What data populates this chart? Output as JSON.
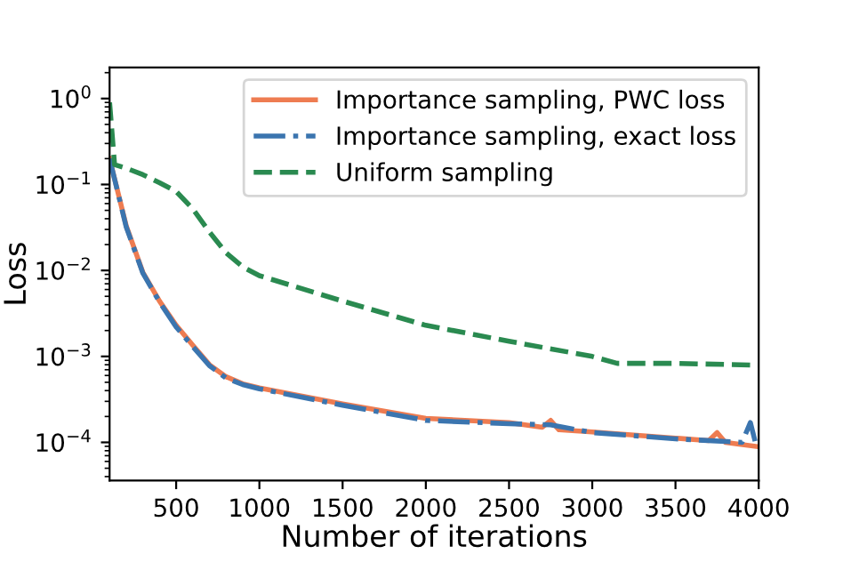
{
  "chart_data": {
    "type": "line",
    "xlabel": "Number of iterations",
    "ylabel": "Loss",
    "log": "y",
    "xlim": [
      100,
      4000
    ],
    "xticks": [
      500,
      1000,
      1500,
      2000,
      2500,
      3000,
      3500,
      4000
    ],
    "ylim": [
      3.6e-05,
      2.3
    ],
    "yticks": [
      {
        "value": 0.0001,
        "label": "10$^{−4}$"
      },
      {
        "value": 0.001,
        "label": "10$^{−3}$"
      },
      {
        "value": 0.01,
        "label": "10$^{−2}$"
      },
      {
        "value": 0.1,
        "label": "10$^{−1}$"
      },
      {
        "value": 1,
        "label": "10$^{0}$"
      }
    ],
    "grid": false,
    "legend": "top right",
    "series": [
      {
        "name": "Importance sampling, PWC loss",
        "color": "#ee7c51",
        "line_style": "solid",
        "x": [
          100,
          200,
          300,
          400,
          500,
          600,
          700,
          800,
          900,
          1000,
          1500,
          2000,
          2500,
          2700,
          2750,
          2800,
          3000,
          3500,
          3700,
          3750,
          3800,
          4000
        ],
        "values": [
          0.2,
          0.033,
          0.0095,
          0.0044,
          0.0023,
          0.00135,
          0.0008,
          0.00058,
          0.00048,
          0.00043,
          0.00028,
          0.00019,
          0.00017,
          0.00015,
          0.00018,
          0.00014,
          0.000132,
          0.000112,
          0.000105,
          0.00013,
          0.0001,
          8.9e-05
        ]
      },
      {
        "name": "Importance sampling, exact loss",
        "color": "#3b75af",
        "line_style": "dashdot",
        "x": [
          100,
          200,
          300,
          400,
          500,
          600,
          700,
          800,
          900,
          1000,
          1500,
          2000,
          2500,
          2750,
          3000,
          3500,
          3900,
          3950,
          3980,
          4000
        ],
        "values": [
          0.2,
          0.032,
          0.0093,
          0.0043,
          0.0022,
          0.0013,
          0.00078,
          0.00056,
          0.00047,
          0.00042,
          0.00027,
          0.00018,
          0.000165,
          0.00016,
          0.00013,
          0.00011,
          0.0001,
          0.00017,
          0.0001,
          8.8e-05
        ]
      },
      {
        "name": "Uniform sampling",
        "color": "#2a8a50",
        "line_style": "dashed",
        "x": [
          100,
          130,
          200,
          300,
          400,
          500,
          600,
          700,
          800,
          900,
          1000,
          1500,
          2000,
          2500,
          3000,
          3150,
          3500,
          4000
        ],
        "values": [
          0.9,
          0.17,
          0.155,
          0.13,
          0.105,
          0.083,
          0.052,
          0.028,
          0.016,
          0.011,
          0.0087,
          0.0044,
          0.0023,
          0.0015,
          0.001,
          0.00083,
          0.00083,
          0.00079
        ]
      }
    ]
  }
}
